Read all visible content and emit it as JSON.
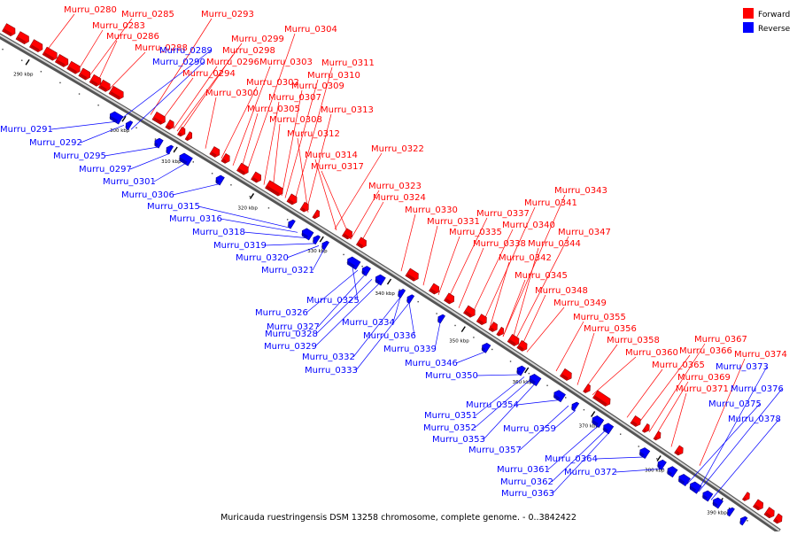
{
  "caption": "Muricauda ruestringensis DSM 13258 chromosome, complete genome. - 0..3842422",
  "legend": {
    "forward_label": "Forward",
    "reverse_label": "Reverse",
    "forward_color": "#ff0000",
    "reverse_color": "#0000ff"
  },
  "scale_labels": [
    "290 kbp",
    "300 kbp",
    "310 kbp",
    "320 kbp",
    "330 kbp",
    "340 kbp",
    "350 kbp",
    "360 kbp",
    "370 kbp",
    "380 kbp",
    "390 kbp"
  ],
  "forward_genes": [
    "Murru_0280",
    "Murru_0283",
    "Murru_0285",
    "Murru_0286",
    "Murru_0288",
    "Murru_0293",
    "Murru_0294",
    "Murru_0296",
    "Murru_0298",
    "Murru_0299",
    "Murru_0300",
    "Murru_0302",
    "Murru_0303",
    "Murru_0304",
    "Murru_0305",
    "Murru_0307",
    "Murru_0308",
    "Murru_0309",
    "Murru_0310",
    "Murru_0311",
    "Murru_0312",
    "Murru_0313",
    "Murru_0314",
    "Murru_0317",
    "Murru_0322",
    "Murru_0323",
    "Murru_0324",
    "Murru_0330",
    "Murru_0331",
    "Murru_0335",
    "Murru_0337",
    "Murru_0338",
    "Murru_0340",
    "Murru_0341",
    "Murru_0342",
    "Murru_0343",
    "Murru_0344",
    "Murru_0345",
    "Murru_0347",
    "Murru_0348",
    "Murru_0349",
    "Murru_0355",
    "Murru_0356",
    "Murru_0358",
    "Murru_0360",
    "Murru_0365",
    "Murru_0366",
    "Murru_0367",
    "Murru_0369",
    "Murru_0371",
    "Murru_0374"
  ],
  "reverse_genes": [
    "Murru_0289",
    "Murru_0290",
    "Murru_0291",
    "Murru_0292",
    "Murru_0295",
    "Murru_0297",
    "Murru_0301",
    "Murru_0306",
    "Murru_0315",
    "Murru_0316",
    "Murru_0318",
    "Murru_0319",
    "Murru_0320",
    "Murru_0321",
    "Murru_0325",
    "Murru_0326",
    "Murru_0327",
    "Murru_0328",
    "Murru_0329",
    "Murru_0332",
    "Murru_0333",
    "Murru_0334",
    "Murru_0336",
    "Murru_0339",
    "Murru_0346",
    "Murru_0350",
    "Murru_0351",
    "Murru_0352",
    "Murru_0353",
    "Murru_0354",
    "Murru_0357",
    "Murru_0359",
    "Murru_0361",
    "Murru_0362",
    "Murru_0363",
    "Murru_0364",
    "Murru_0372",
    "Murru_0373",
    "Murru_0375",
    "Murru_0376",
    "Murru_0378"
  ]
}
